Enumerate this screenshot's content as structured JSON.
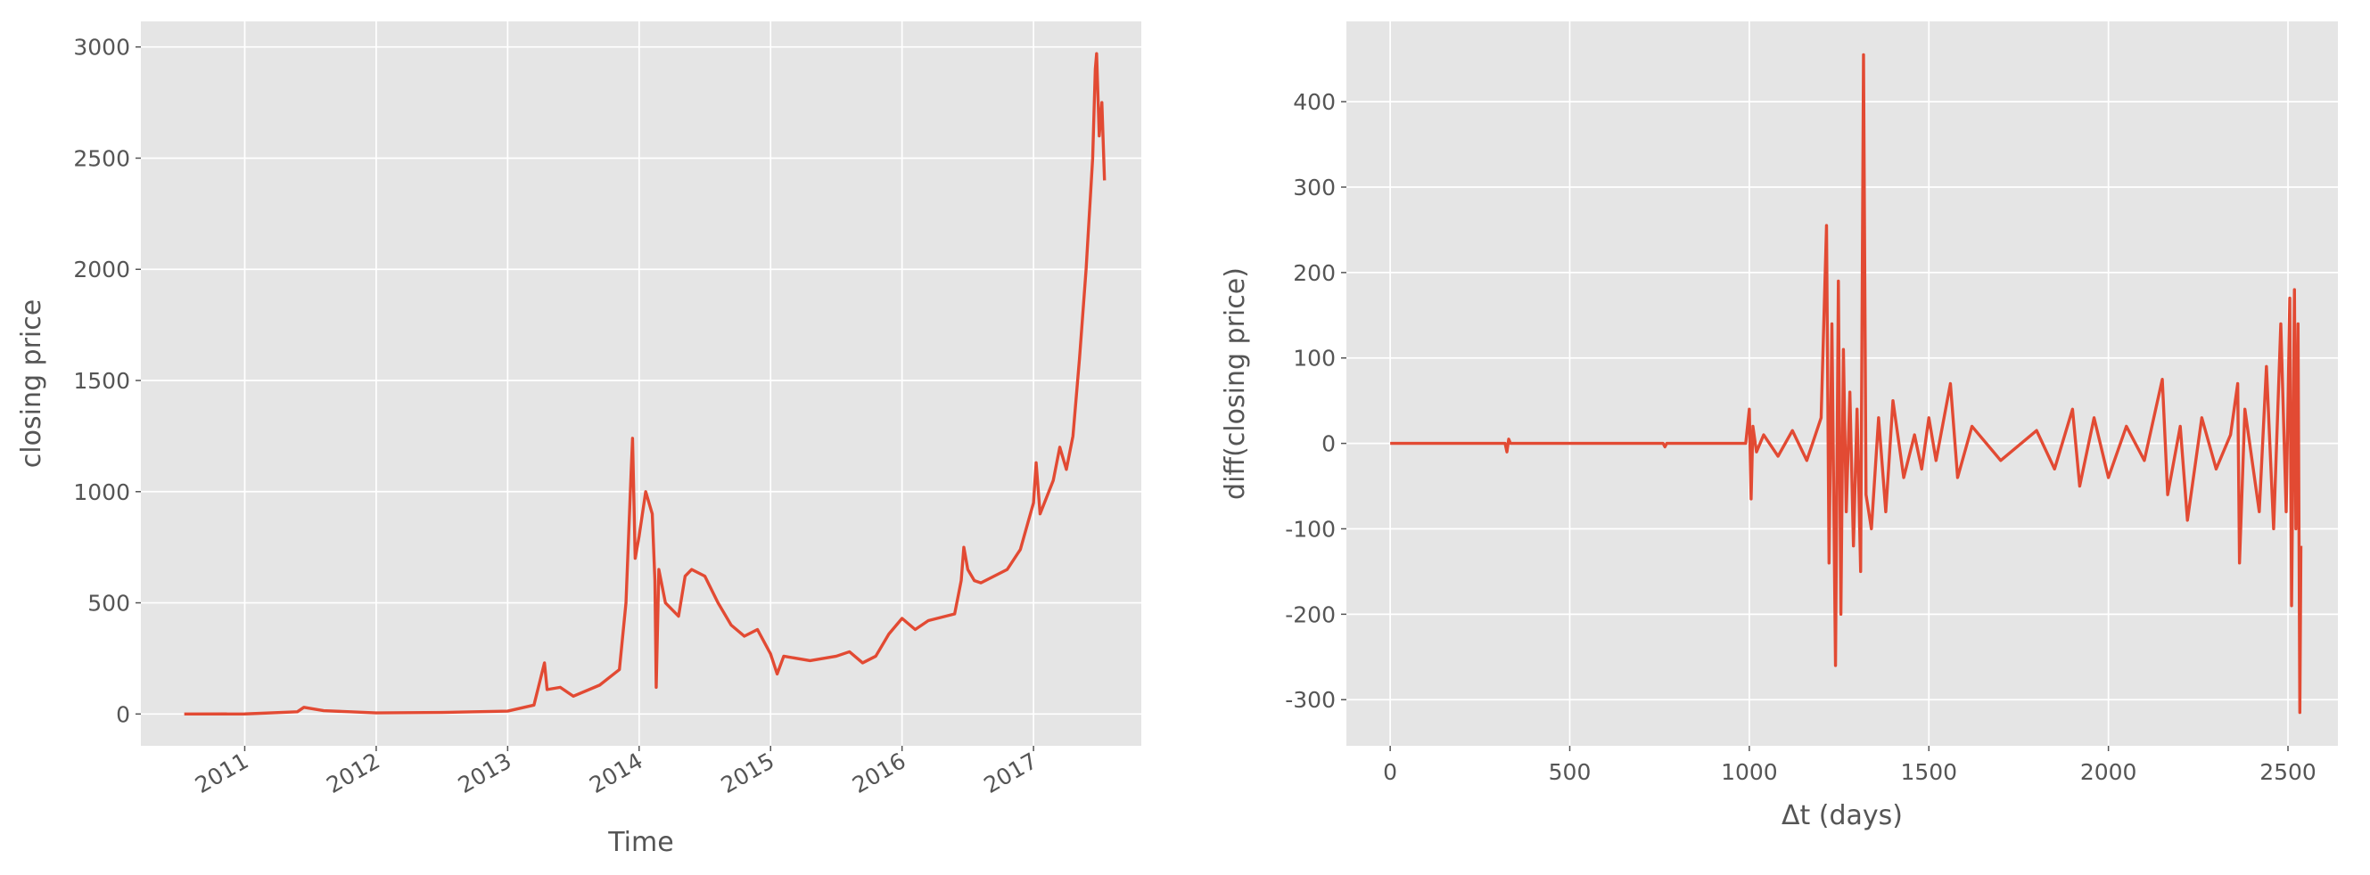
{
  "chart_data": [
    {
      "type": "line",
      "xlabel": "Time",
      "ylabel": "closing price",
      "xlim": [
        2010.21,
        2017.82
      ],
      "xticks": [
        2011,
        2012,
        2013,
        2014,
        2015,
        2016,
        2017
      ],
      "ylim": [
        -143,
        3115
      ],
      "yticks": [
        0,
        500,
        1000,
        1500,
        2000,
        2500,
        3000
      ],
      "grid": true,
      "series": [
        {
          "color": "#e24a33",
          "x": [
            2010.54,
            2011.0,
            2011.4,
            2011.45,
            2011.6,
            2012.0,
            2012.5,
            2013.0,
            2013.2,
            2013.28,
            2013.3,
            2013.4,
            2013.5,
            2013.7,
            2013.85,
            2013.9,
            2013.92,
            2013.94,
            2013.95,
            2013.97,
            2014.0,
            2014.05,
            2014.1,
            2014.12,
            2014.13,
            2014.15,
            2014.2,
            2014.3,
            2014.35,
            2014.4,
            2014.5,
            2014.6,
            2014.7,
            2014.8,
            2014.9,
            2015.0,
            2015.05,
            2015.1,
            2015.3,
            2015.5,
            2015.6,
            2015.7,
            2015.8,
            2015.9,
            2016.0,
            2016.1,
            2016.2,
            2016.4,
            2016.45,
            2016.47,
            2016.5,
            2016.55,
            2016.6,
            2016.8,
            2016.9,
            2017.0,
            2017.02,
            2017.05,
            2017.15,
            2017.2,
            2017.25,
            2017.3,
            2017.35,
            2017.4,
            2017.45,
            2017.47,
            2017.48,
            2017.5,
            2017.52,
            2017.54
          ],
          "values": [
            0,
            0.3,
            10,
            30,
            15,
            5,
            7,
            13,
            40,
            230,
            110,
            120,
            80,
            130,
            200,
            500,
            800,
            1100,
            1240,
            700,
            800,
            1000,
            900,
            600,
            120,
            650,
            500,
            440,
            620,
            650,
            620,
            500,
            400,
            350,
            380,
            270,
            180,
            260,
            240,
            260,
            280,
            230,
            260,
            360,
            430,
            380,
            420,
            450,
            600,
            750,
            650,
            600,
            590,
            650,
            740,
            950,
            1130,
            900,
            1050,
            1200,
            1100,
            1250,
            1600,
            2000,
            2500,
            2900,
            2970,
            2600,
            2750,
            2400
          ]
        }
      ]
    },
    {
      "type": "line",
      "xlabel": "Δt (days)",
      "ylabel": "diff(closing price)",
      "xlim": [
        -122,
        2639
      ],
      "xticks": [
        0,
        500,
        1000,
        1500,
        2000,
        2500
      ],
      "ylim": [
        -354,
        494
      ],
      "yticks": [
        -300,
        -200,
        -100,
        0,
        100,
        200,
        300,
        400
      ],
      "grid": true,
      "series": [
        {
          "color": "#e24a33",
          "x": [
            0,
            320,
            325,
            330,
            335,
            760,
            765,
            770,
            990,
            1000,
            1005,
            1010,
            1020,
            1040,
            1080,
            1120,
            1160,
            1200,
            1215,
            1222,
            1230,
            1240,
            1248,
            1255,
            1262,
            1270,
            1280,
            1290,
            1300,
            1310,
            1318,
            1325,
            1340,
            1360,
            1380,
            1400,
            1430,
            1460,
            1480,
            1500,
            1520,
            1560,
            1580,
            1620,
            1700,
            1800,
            1850,
            1900,
            1920,
            1960,
            2000,
            2050,
            2100,
            2150,
            2165,
            2200,
            2220,
            2260,
            2300,
            2340,
            2360,
            2365,
            2380,
            2420,
            2440,
            2460,
            2480,
            2495,
            2505,
            2510,
            2518,
            2522,
            2528,
            2533,
            2536
          ],
          "values": [
            0,
            0,
            -10,
            5,
            0,
            0,
            -4,
            0,
            0,
            40,
            -65,
            20,
            -10,
            10,
            -15,
            15,
            -20,
            30,
            255,
            -140,
            140,
            -260,
            190,
            -200,
            110,
            -80,
            60,
            -120,
            40,
            -150,
            455,
            -60,
            -100,
            30,
            -80,
            50,
            -40,
            10,
            -30,
            30,
            -20,
            70,
            -40,
            20,
            -20,
            15,
            -30,
            40,
            -50,
            30,
            -40,
            20,
            -20,
            75,
            -60,
            20,
            -90,
            30,
            -30,
            10,
            70,
            -140,
            40,
            -80,
            90,
            -100,
            140,
            -80,
            170,
            -190,
            180,
            -100,
            140,
            -315,
            -120
          ]
        }
      ]
    }
  ]
}
